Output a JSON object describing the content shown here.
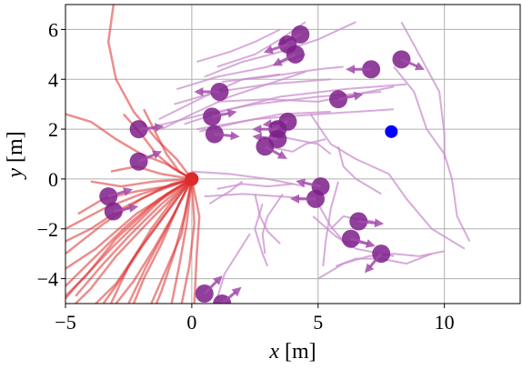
{
  "chart_data": {
    "type": "scatter",
    "xlabel": "x [m]",
    "ylabel": "y [m]",
    "xlim": [
      -5,
      13
    ],
    "ylim": [
      -5,
      7
    ],
    "grid": true,
    "x_ticks": [
      {
        "v": -5,
        "label": "−5"
      },
      {
        "v": 0,
        "label": "0"
      },
      {
        "v": 5,
        "label": "5"
      },
      {
        "v": 10,
        "label": "10"
      }
    ],
    "y_ticks": [
      {
        "v": -4,
        "label": "−4"
      },
      {
        "v": -2,
        "label": "−2"
      },
      {
        "v": 0,
        "label": "0"
      },
      {
        "v": 2,
        "label": "2"
      },
      {
        "v": 4,
        "label": "4"
      },
      {
        "v": 6,
        "label": "6"
      }
    ],
    "colors": {
      "robot": "#dd2a2a",
      "robot_paths": "#dd3030",
      "goal": "#0000ff",
      "agents": "#7d1f8a",
      "agent_paths": "#c98fce"
    },
    "robot": {
      "x": 0,
      "y": 0
    },
    "goal": {
      "x": 7.9,
      "y": 1.9
    },
    "agents": [
      {
        "x": 4.3,
        "y": 5.8,
        "dx": -1.1,
        "dy": -0.5
      },
      {
        "x": 3.8,
        "y": 5.4,
        "dx": -0.9,
        "dy": -0.3
      },
      {
        "x": 4.1,
        "y": 5.0,
        "dx": -0.8,
        "dy": -0.4
      },
      {
        "x": 8.3,
        "y": 4.8,
        "dx": 0.9,
        "dy": -0.4
      },
      {
        "x": 7.1,
        "y": 4.4,
        "dx": -1.0,
        "dy": 0.0
      },
      {
        "x": 1.1,
        "y": 3.5,
        "dx": -1.0,
        "dy": 0.0
      },
      {
        "x": 5.8,
        "y": 3.2,
        "dx": 1.0,
        "dy": 0.2
      },
      {
        "x": 0.8,
        "y": 2.5,
        "dx": 1.0,
        "dy": 0.2
      },
      {
        "x": 3.8,
        "y": 2.3,
        "dx": -0.8,
        "dy": -0.1
      },
      {
        "x": -2.1,
        "y": 2.0,
        "dx": 1.0,
        "dy": 0.1
      },
      {
        "x": 3.4,
        "y": 2.0,
        "dx": -1.0,
        "dy": 0.0
      },
      {
        "x": 0.9,
        "y": 1.8,
        "dx": 1.0,
        "dy": -0.1
      },
      {
        "x": 3.4,
        "y": 1.6,
        "dx": -0.9,
        "dy": 0.1
      },
      {
        "x": 2.9,
        "y": 1.3,
        "dx": 0.9,
        "dy": -0.5
      },
      {
        "x": -2.1,
        "y": 0.7,
        "dx": 0.9,
        "dy": 0.4
      },
      {
        "x": 5.1,
        "y": -0.3,
        "dx": -0.9,
        "dy": 0.2
      },
      {
        "x": 4.9,
        "y": -0.8,
        "dx": -1.0,
        "dy": 0.0
      },
      {
        "x": -3.3,
        "y": -0.7,
        "dx": 1.0,
        "dy": 0.3
      },
      {
        "x": -3.1,
        "y": -1.3,
        "dx": 1.0,
        "dy": 0.2
      },
      {
        "x": 6.6,
        "y": -1.7,
        "dx": 1.0,
        "dy": -0.1
      },
      {
        "x": 6.3,
        "y": -2.4,
        "dx": 1.0,
        "dy": -0.3
      },
      {
        "x": 7.5,
        "y": -3.0,
        "dx": -0.6,
        "dy": -0.7
      },
      {
        "x": 0.5,
        "y": -4.6,
        "dx": 0.6,
        "dy": 0.6
      },
      {
        "x": 1.2,
        "y": -5.0,
        "dx": 0.7,
        "dy": 0.6
      }
    ],
    "agent_paths": [
      [
        [
          -0.3,
          2.2
        ],
        [
          1.5,
          2.8
        ],
        [
          3.5,
          3.3
        ],
        [
          6.0,
          3.6
        ],
        [
          8.5,
          3.8
        ]
      ],
      [
        [
          -1.5,
          2.1
        ],
        [
          0.5,
          2.6
        ],
        [
          2.5,
          3.0
        ],
        [
          5.0,
          3.3
        ],
        [
          7.5,
          3.5
        ]
      ],
      [
        [
          -0.7,
          3.0
        ],
        [
          1.0,
          3.5
        ],
        [
          3.0,
          3.8
        ],
        [
          5.5,
          4.0
        ]
      ],
      [
        [
          -1.2,
          2.0
        ],
        [
          0.0,
          2.6
        ],
        [
          1.5,
          3.3
        ],
        [
          3.0,
          3.8
        ],
        [
          4.5,
          4.3
        ]
      ],
      [
        [
          1.0,
          3.1
        ],
        [
          3.0,
          3.2
        ],
        [
          5.0,
          3.1
        ],
        [
          8.0,
          3.7
        ]
      ],
      [
        [
          0.3,
          1.9
        ],
        [
          2.0,
          2.3
        ],
        [
          3.5,
          2.6
        ],
        [
          5.5,
          2.7
        ]
      ],
      [
        [
          0.2,
          2.0
        ],
        [
          2.5,
          2.4
        ],
        [
          5.0,
          2.6
        ],
        [
          8.0,
          2.8
        ]
      ],
      [
        [
          -0.6,
          3.6
        ],
        [
          1.0,
          4.1
        ],
        [
          3.0,
          4.5
        ],
        [
          4.5,
          5.0
        ]
      ],
      [
        [
          0.5,
          4.1
        ],
        [
          2.0,
          4.7
        ],
        [
          3.5,
          5.1
        ],
        [
          5.0,
          5.6
        ],
        [
          6.5,
          6.3
        ]
      ],
      [
        [
          1.0,
          4.5
        ],
        [
          2.5,
          5.0
        ],
        [
          3.5,
          5.6
        ],
        [
          4.5,
          6.3
        ]
      ],
      [
        [
          0.2,
          4.7
        ],
        [
          1.5,
          5.1
        ],
        [
          2.5,
          5.5
        ],
        [
          3.5,
          6.0
        ]
      ],
      [
        [
          1.2,
          3.9
        ],
        [
          3.0,
          4.1
        ],
        [
          5.0,
          4.4
        ],
        [
          6.0,
          4.5
        ]
      ],
      [
        [
          -1.3,
          2.4
        ],
        [
          0.5,
          3.3
        ],
        [
          2.0,
          4.0
        ],
        [
          3.5,
          4.2
        ]
      ],
      [
        [
          3.0,
          1.3
        ],
        [
          4.0,
          1.1
        ],
        [
          4.5,
          1.4
        ],
        [
          5.3,
          1.6
        ]
      ],
      [
        [
          3.1,
          1.8
        ],
        [
          4.0,
          1.6
        ],
        [
          5.0,
          1.4
        ],
        [
          5.5,
          1.0
        ]
      ],
      [
        [
          0.0,
          0.3
        ],
        [
          1.5,
          0.2
        ],
        [
          3.0,
          0.0
        ],
        [
          4.5,
          -0.3
        ]
      ],
      [
        [
          0.5,
          -0.7
        ],
        [
          2.0,
          -0.6
        ],
        [
          3.5,
          -0.7
        ],
        [
          4.8,
          -0.8
        ]
      ],
      [
        [
          1.0,
          -0.4
        ],
        [
          2.0,
          -0.2
        ],
        [
          3.0,
          -0.3
        ],
        [
          4.0,
          -0.2
        ]
      ],
      [
        [
          2.8,
          -1.0
        ],
        [
          2.5,
          -2.0
        ],
        [
          2.8,
          -3.0
        ],
        [
          3.0,
          -3.5
        ]
      ],
      [
        [
          3.6,
          -0.6
        ],
        [
          3.0,
          -1.5
        ],
        [
          2.8,
          -2.2
        ],
        [
          2.9,
          -3.0
        ]
      ],
      [
        [
          5.8,
          1.3
        ],
        [
          6.0,
          0.5
        ],
        [
          6.5,
          0.0
        ],
        [
          7.5,
          -0.6
        ]
      ],
      [
        [
          4.7,
          2.6
        ],
        [
          5.5,
          1.4
        ],
        [
          6.5,
          0.8
        ],
        [
          7.8,
          0.2
        ],
        [
          8.5,
          -0.8
        ],
        [
          9.5,
          -2.0
        ],
        [
          10.8,
          -2.8
        ]
      ],
      [
        [
          8.0,
          4.5
        ],
        [
          8.8,
          3.5
        ],
        [
          9.3,
          2.0
        ],
        [
          10.0,
          1.0
        ],
        [
          10.3,
          0.0
        ],
        [
          10.5,
          -1.5
        ],
        [
          11.0,
          -2.5
        ]
      ],
      [
        [
          8.3,
          6.3
        ],
        [
          9.0,
          5.0
        ],
        [
          9.8,
          3.5
        ],
        [
          10.0,
          1.8
        ],
        [
          10.0,
          0.8
        ]
      ],
      [
        [
          4.8,
          -1.5
        ],
        [
          5.7,
          -2.3
        ],
        [
          6.5,
          -2.8
        ],
        [
          7.5,
          -3.0
        ],
        [
          8.0,
          -3.1
        ]
      ],
      [
        [
          5.8,
          -0.1
        ],
        [
          5.5,
          -1.2
        ],
        [
          5.3,
          -2.5
        ],
        [
          5.2,
          -3.5
        ]
      ],
      [
        [
          5.5,
          -2.0
        ],
        [
          6.0,
          -1.5
        ],
        [
          6.5,
          -1.6
        ],
        [
          7.2,
          -1.7
        ]
      ],
      [
        [
          5.0,
          -4.0
        ],
        [
          6.0,
          -3.4
        ],
        [
          7.0,
          -3.1
        ],
        [
          8.0,
          -3.0
        ],
        [
          9.0,
          -3.1
        ],
        [
          10.0,
          -2.9
        ]
      ],
      [
        [
          5.0,
          -1.0
        ],
        [
          5.5,
          -1.9
        ],
        [
          6.0,
          -2.5
        ],
        [
          7.0,
          -2.6
        ]
      ],
      [
        [
          5.7,
          -3.5
        ],
        [
          6.5,
          -3.2
        ],
        [
          7.5,
          -3.2
        ],
        [
          8.5,
          -3.4
        ],
        [
          9.5,
          -3.0
        ]
      ],
      [
        [
          2.0,
          -0.1
        ],
        [
          1.5,
          -0.5
        ],
        [
          1.0,
          -0.8
        ],
        [
          0.7,
          -1.0
        ]
      ],
      [
        [
          1.0,
          -4.8
        ],
        [
          1.3,
          -3.8
        ],
        [
          1.8,
          -3.0
        ],
        [
          2.3,
          -2.2
        ]
      ],
      [
        [
          2.5,
          -0.6
        ],
        [
          2.7,
          -1.5
        ],
        [
          3.0,
          -2.1
        ],
        [
          3.5,
          -2.6
        ]
      ]
    ],
    "robot_paths": [
      [
        [
          0,
          0
        ],
        [
          -0.8,
          -0.2
        ],
        [
          -2.0,
          -0.8
        ],
        [
          -3.5,
          -1.8
        ],
        [
          -5.0,
          -3.0
        ]
      ],
      [
        [
          0,
          0
        ],
        [
          -1.0,
          -0.6
        ],
        [
          -2.0,
          -1.6
        ],
        [
          -3.2,
          -2.8
        ],
        [
          -4.5,
          -4.2
        ],
        [
          -5.0,
          -4.8
        ]
      ],
      [
        [
          0,
          0
        ],
        [
          -1.2,
          -1.0
        ],
        [
          -2.4,
          -2.2
        ],
        [
          -3.5,
          -3.4
        ],
        [
          -4.6,
          -4.7
        ]
      ],
      [
        [
          0,
          0
        ],
        [
          -0.9,
          -1.2
        ],
        [
          -1.9,
          -2.6
        ],
        [
          -2.8,
          -4.0
        ],
        [
          -3.5,
          -5.0
        ]
      ],
      [
        [
          0,
          0
        ],
        [
          -0.5,
          -1.0
        ],
        [
          -1.2,
          -2.6
        ],
        [
          -1.9,
          -4.0
        ],
        [
          -2.3,
          -5.0
        ]
      ],
      [
        [
          0,
          0
        ],
        [
          -0.7,
          -1.4
        ],
        [
          -1.5,
          -2.8
        ],
        [
          -2.3,
          -4.1
        ],
        [
          -3.0,
          -5.0
        ]
      ],
      [
        [
          0,
          0
        ],
        [
          -1.3,
          -0.8
        ],
        [
          -2.6,
          -1.9
        ],
        [
          -3.9,
          -3.2
        ],
        [
          -5.0,
          -4.3
        ]
      ],
      [
        [
          0,
          0
        ],
        [
          -1.4,
          -0.5
        ],
        [
          -2.8,
          -1.2
        ],
        [
          -4.0,
          -2.0
        ],
        [
          -5.0,
          -2.5
        ]
      ],
      [
        [
          0,
          0
        ],
        [
          -1.1,
          -1.5
        ],
        [
          -2.2,
          -3.0
        ],
        [
          -3.0,
          -4.2
        ],
        [
          -3.8,
          -5.0
        ]
      ],
      [
        [
          0,
          0
        ],
        [
          -0.3,
          -1.5
        ],
        [
          -0.7,
          -3.0
        ],
        [
          -1.2,
          -4.5
        ],
        [
          -1.4,
          -5.0
        ]
      ],
      [
        [
          0,
          0
        ],
        [
          -0.2,
          -1.8
        ],
        [
          -0.5,
          -3.5
        ],
        [
          -0.8,
          -5.0
        ]
      ],
      [
        [
          0,
          0
        ],
        [
          0.1,
          -1.8
        ],
        [
          -0.1,
          -3.5
        ],
        [
          -0.4,
          -5.0
        ]
      ],
      [
        [
          0,
          0
        ],
        [
          0.3,
          -1.5
        ],
        [
          0.2,
          -3.0
        ],
        [
          0.1,
          -5.0
        ]
      ],
      [
        [
          0,
          0
        ],
        [
          -1.0,
          -0.3
        ],
        [
          -2.2,
          -0.5
        ],
        [
          -3.5,
          -0.8
        ],
        [
          -4.5,
          -1.4
        ]
      ],
      [
        [
          0,
          0
        ],
        [
          -1.6,
          -1.1
        ],
        [
          -3.0,
          -2.4
        ],
        [
          -4.2,
          -3.9
        ],
        [
          -5.0,
          -4.7
        ]
      ],
      [
        [
          0,
          0
        ],
        [
          -0.8,
          -0.9
        ],
        [
          -1.6,
          -2.0
        ],
        [
          -2.5,
          -3.5
        ],
        [
          -3.2,
          -5.0
        ]
      ],
      [
        [
          0,
          0
        ],
        [
          -0.6,
          0.8
        ],
        [
          -1.4,
          1.6
        ],
        [
          -2.3,
          2.7
        ],
        [
          -3.0,
          4.0
        ],
        [
          -3.3,
          5.5
        ],
        [
          -3.1,
          7.0
        ]
      ],
      [
        [
          0,
          0
        ],
        [
          -1.0,
          0.6
        ],
        [
          -2.0,
          1.0
        ],
        [
          -3.0,
          1.6
        ],
        [
          -4.0,
          2.3
        ],
        [
          -5.0,
          2.6
        ]
      ],
      [
        [
          0,
          0
        ],
        [
          -0.7,
          0.4
        ],
        [
          -1.4,
          1.0
        ],
        [
          -2.0,
          1.8
        ],
        [
          -2.7,
          2.6
        ]
      ],
      [
        [
          0,
          0
        ],
        [
          -1.2,
          0.2
        ],
        [
          -2.2,
          0.5
        ],
        [
          -3.2,
          0.3
        ]
      ],
      [
        [
          0,
          0
        ],
        [
          -1.5,
          -0.1
        ],
        [
          -2.8,
          -0.3
        ],
        [
          -4.0,
          -0.1
        ]
      ],
      [
        [
          0,
          0
        ],
        [
          -0.5,
          0.3
        ],
        [
          -1.0,
          1.0
        ],
        [
          -1.5,
          2.0
        ],
        [
          -1.9,
          2.8
        ]
      ],
      [
        [
          0,
          0
        ],
        [
          -2.0,
          -0.6
        ],
        [
          -3.5,
          -1.2
        ],
        [
          -5.0,
          -2.0
        ]
      ],
      [
        [
          0,
          0
        ],
        [
          -1.6,
          -1.6
        ],
        [
          -3.0,
          -3.1
        ],
        [
          -4.0,
          -4.4
        ],
        [
          -4.6,
          -5.0
        ]
      ],
      [
        [
          0,
          0
        ],
        [
          -1.0,
          -2.0
        ],
        [
          -1.8,
          -3.5
        ],
        [
          -2.5,
          -5.0
        ]
      ],
      [
        [
          0,
          0
        ],
        [
          -2.2,
          -1.4
        ],
        [
          -3.8,
          -2.8
        ],
        [
          -5.0,
          -3.6
        ]
      ],
      [
        [
          0,
          0
        ],
        [
          -0.4,
          -2.2
        ],
        [
          -1.0,
          -3.6
        ],
        [
          -1.6,
          -5.0
        ]
      ]
    ]
  }
}
